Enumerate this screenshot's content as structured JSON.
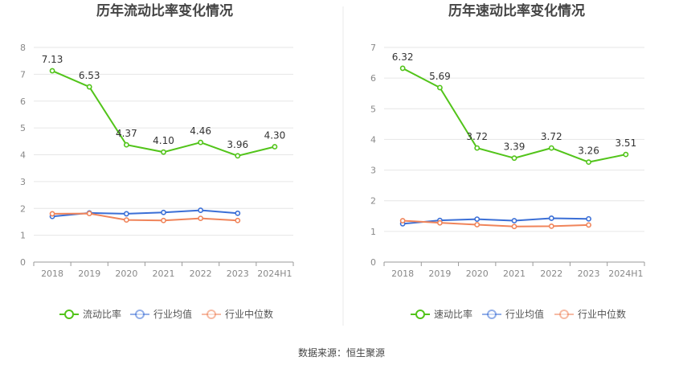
{
  "chart_data": [
    {
      "type": "line",
      "title": "历年流动比率变化情况",
      "categories": [
        "2018",
        "2019",
        "2020",
        "2021",
        "2022",
        "2023",
        "2024H1"
      ],
      "ylim": [
        0,
        8
      ],
      "yticks": [
        "0",
        "1",
        "2",
        "3",
        "4",
        "5",
        "6",
        "7",
        "8"
      ],
      "grid": true,
      "legend_position": "bottom",
      "series": [
        {
          "name": "流动比率",
          "color": "#52c41a",
          "values": [
            7.13,
            6.53,
            4.37,
            4.1,
            4.46,
            3.96,
            4.3
          ],
          "labels": [
            "7.13",
            "6.53",
            "4.37",
            "4.10",
            "4.46",
            "3.96",
            "4.30"
          ]
        },
        {
          "name": "行业均值",
          "color": "#3b6fd6",
          "values": [
            1.7,
            1.83,
            1.8,
            1.85,
            1.93,
            1.82,
            null
          ]
        },
        {
          "name": "行业中位数",
          "color": "#f0845a",
          "values": [
            1.8,
            1.81,
            1.57,
            1.55,
            1.63,
            1.55,
            null
          ]
        }
      ]
    },
    {
      "type": "line",
      "title": "历年速动比率变化情况",
      "categories": [
        "2018",
        "2019",
        "2020",
        "2021",
        "2022",
        "2023",
        "2024H1"
      ],
      "ylim": [
        0,
        7
      ],
      "yticks": [
        "0",
        "1",
        "2",
        "3",
        "4",
        "5",
        "6",
        "7"
      ],
      "grid": true,
      "legend_position": "bottom",
      "series": [
        {
          "name": "速动比率",
          "color": "#52c41a",
          "values": [
            6.32,
            5.69,
            3.72,
            3.39,
            3.72,
            3.26,
            3.51
          ],
          "labels": [
            "6.32",
            "5.69",
            "3.72",
            "3.39",
            "3.72",
            "3.26",
            "3.51"
          ]
        },
        {
          "name": "行业均值",
          "color": "#3b6fd6",
          "values": [
            1.25,
            1.36,
            1.4,
            1.35,
            1.43,
            1.41,
            null
          ]
        },
        {
          "name": "行业中位数",
          "color": "#f0845a",
          "values": [
            1.35,
            1.28,
            1.22,
            1.16,
            1.17,
            1.21,
            null
          ]
        }
      ]
    }
  ],
  "source": "数据来源：恒生聚源"
}
